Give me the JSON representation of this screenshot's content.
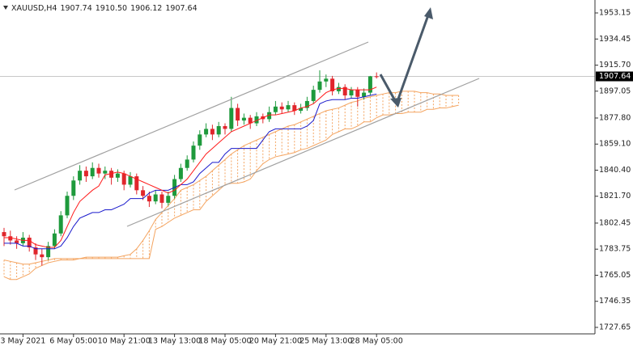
{
  "chart_data": {
    "type": "candlestick",
    "header": {
      "symbol": "XAUUSD,H4",
      "ohlc": [
        1907.74,
        {
          "value": 1910.5,
          "label": "1910.50"
        },
        1906.12,
        1907.64
      ]
    },
    "last_price": 1907.64,
    "ylim": [
      1723.0,
      1962.43
    ],
    "yticks": [
      1953.15,
      1934.45,
      {
        "value": 1915.7,
        "label": "1915.70"
      },
      1897.05,
      {
        "value": 1877.8,
        "label": "1877.80"
      },
      {
        "value": 1859.1,
        "label": "1859.10"
      },
      {
        "value": 1840.4,
        "label": "1840.40"
      },
      {
        "value": 1821.7,
        "label": "1821.70"
      },
      1802.45,
      1783.75,
      1765.05,
      1746.35,
      1727.65
    ],
    "categories": [
      null,
      null,
      null,
      "3 May 2021",
      null,
      null,
      null,
      null,
      null,
      null,
      null,
      "6 May 05:00",
      null,
      null,
      null,
      null,
      null,
      null,
      null,
      "10 May 21:00",
      null,
      null,
      null,
      null,
      null,
      null,
      null,
      "13 May 13:00",
      null,
      null,
      null,
      null,
      null,
      null,
      null,
      "18 May 05:00",
      null,
      null,
      null,
      null,
      null,
      null,
      null,
      "20 May 21:00",
      null,
      null,
      null,
      null,
      null,
      null,
      null,
      "25 May 13:00",
      null,
      null,
      null,
      null,
      null,
      null,
      null,
      "28 May 05:00",
      null,
      null,
      null,
      null,
      null,
      null,
      null,
      null,
      null,
      null,
      null,
      null,
      null
    ],
    "open": [
      1796,
      1793,
      1790,
      1788,
      1792,
      1785,
      1780,
      1778,
      1786,
      1795,
      1808,
      1822,
      1833,
      1840,
      1836,
      1842,
      1838,
      1840,
      1835,
      1838,
      1830,
      1836,
      1826,
      1822,
      1818,
      1823,
      1817,
      1822,
      1834,
      1842,
      1848,
      1858,
      1866,
      1870,
      1866,
      1872,
      1870,
      1885,
      1876,
      1878,
      1874,
      1879,
      1877,
      1882,
      1886,
      1884,
      1887,
      1883,
      1885,
      1890,
      1898,
      1904,
      1906,
      1897,
      1900,
      1894,
      1898,
      1893,
      1896,
      1907.74,
      null,
      null,
      null,
      null,
      null,
      null,
      null,
      null,
      null,
      null,
      null,
      null,
      null
    ],
    "high": [
      1799,
      1797,
      1793,
      1796,
      1794,
      1788,
      1784,
      1789,
      1798,
      1811,
      1825,
      1836,
      1844,
      1843,
      1846,
      1845,
      1843,
      1842,
      1841,
      1840,
      1839,
      1838,
      1829,
      1825,
      1826,
      1825,
      1825,
      1837,
      1845,
      1851,
      1861,
      1869,
      1874,
      1873,
      1875,
      1874,
      1893,
      1888,
      1881,
      1880,
      1882,
      1881,
      1886,
      1890,
      1889,
      1890,
      1889,
      1888,
      1893,
      1901,
      1912,
      1909,
      1908,
      1903,
      1902,
      1900,
      1900,
      1899,
      1908,
      1910.5,
      null,
      null,
      null,
      null,
      null,
      null,
      null,
      null,
      null,
      null,
      null,
      null,
      null
    ],
    "low": [
      1786,
      1787,
      1784,
      1786,
      1782,
      1776,
      1772,
      1776,
      1784,
      1793,
      1806,
      1819,
      1830,
      1832,
      1834,
      1835,
      1834,
      1830,
      1832,
      1826,
      1828,
      1823,
      1819,
      1814,
      1816,
      1813,
      1815,
      1820,
      1832,
      1840,
      1846,
      1855,
      1864,
      1862,
      1864,
      1866,
      1868,
      1872,
      1873,
      1870,
      1872,
      1874,
      1875,
      1880,
      1881,
      1882,
      1880,
      1881,
      1883,
      1888,
      1896,
      1900,
      1894,
      1895,
      1891,
      1892,
      1886,
      1891,
      1894,
      1906.12,
      null,
      null,
      null,
      null,
      null,
      null,
      null,
      null,
      null,
      null,
      null,
      null,
      null
    ],
    "close": [
      1793,
      1790,
      1788,
      1792,
      1785,
      1780,
      1778,
      1786,
      1795,
      1808,
      1822,
      1833,
      1840,
      1836,
      1842,
      1838,
      1840,
      1835,
      1838,
      1830,
      1836,
      1826,
      1822,
      1818,
      1823,
      1817,
      1822,
      1834,
      1842,
      1848,
      1858,
      1866,
      1870,
      1866,
      1872,
      1870,
      1885,
      1876,
      1878,
      1874,
      1879,
      1877,
      1882,
      1886,
      1884,
      1887,
      1883,
      1885,
      1890,
      1898,
      1904,
      1906,
      1897,
      1900,
      1894,
      1898,
      1893,
      1896,
      1907.7,
      1907.64,
      null,
      null,
      null,
      null,
      null,
      null,
      null,
      null,
      null,
      null,
      null,
      null,
      null
    ],
    "tenkan": [
      1792,
      1792,
      1791,
      1790,
      1790,
      1787,
      1786,
      1785,
      1785,
      1790,
      1800,
      1810,
      1818,
      1822,
      1826,
      1829,
      1837,
      1838,
      1839,
      1838,
      1836,
      1834,
      1832,
      1830,
      1828,
      1826,
      1824,
      1826,
      1830,
      1834,
      1840,
      1846,
      1852,
      1856,
      1860,
      1864,
      1868,
      1870,
      1872,
      1874,
      1876,
      1878,
      1880,
      1880,
      1881,
      1882,
      1883,
      1885,
      1886,
      1888,
      1892,
      1896,
      1898,
      1899,
      1899,
      1898,
      1898,
      1898,
      1898,
      1900,
      null,
      null,
      null,
      null,
      null,
      null,
      null,
      null,
      null,
      null,
      null,
      null,
      null
    ],
    "kijun": [
      1788,
      1788,
      1788,
      1786,
      1786,
      1784,
      1784,
      1784,
      1784,
      1786,
      1792,
      1800,
      1806,
      1808,
      1810,
      1810,
      1812,
      1812,
      1814,
      1816,
      1820,
      1820,
      1820,
      1824,
      1826,
      1826,
      1826,
      1828,
      1830,
      1830,
      1832,
      1838,
      1842,
      1846,
      1846,
      1852,
      1856,
      1856,
      1856,
      1856,
      1856,
      1862,
      1868,
      1870,
      1870,
      1870,
      1870,
      1870,
      1872,
      1876,
      1888,
      1890,
      1891,
      1891,
      1891,
      1892,
      1892,
      1893,
      1894,
      1895,
      null,
      null,
      null,
      null,
      null,
      null,
      null,
      null,
      null,
      null,
      null,
      null,
      null
    ],
    "span_a": [
      1776,
      1775,
      1774,
      1773,
      1773,
      1774,
      1775,
      1776,
      1777,
      1777,
      1777,
      1777,
      1777,
      1778,
      1778,
      1778,
      1778,
      1778,
      1778,
      1779,
      1780,
      1784,
      1790,
      1797,
      1805,
      1810,
      1815,
      1820,
      1826,
      1828,
      1830,
      1833,
      1836,
      1840,
      1844,
      1848,
      1852,
      1855,
      1858,
      1860,
      1862,
      1864,
      1866,
      1868,
      1870,
      1872,
      1873,
      1875,
      1877,
      1879,
      1881,
      1883,
      1884,
      1885,
      1887,
      1889,
      1890,
      1892,
      1893,
      1894,
      1895,
      1896,
      1896,
      1897,
      1897,
      1897,
      1896,
      1896,
      1895,
      1895,
      1894,
      1894,
      1894
    ],
    "span_b": [
      1764,
      1762,
      1762,
      1764,
      1766,
      1770,
      1772,
      1774,
      1775,
      1776,
      1776,
      1776,
      1777,
      1777,
      1777,
      1777,
      1777,
      1777,
      1777,
      1777,
      1777,
      1777,
      1777,
      1777,
      1798,
      1800,
      1803,
      1806,
      1808,
      1810,
      1812,
      1812,
      1818,
      1822,
      1826,
      1830,
      1831,
      1831,
      1832,
      1834,
      1840,
      1845,
      1848,
      1850,
      1851,
      1852,
      1853,
      1855,
      1856,
      1858,
      1860,
      1862,
      1866,
      1868,
      1870,
      1870,
      1872,
      1875,
      1875,
      1878,
      1880,
      1880,
      1881,
      1881,
      1882,
      1882,
      1882,
      1884,
      1884,
      1885,
      1885,
      1886,
      1887
    ],
    "up_color": "#1e9a3c",
    "down_color": "#e0262c",
    "tenkan_color": "#ff1a1a",
    "kijun_color": "#1a1acc",
    "cloud_color": "#f4a460"
  }
}
